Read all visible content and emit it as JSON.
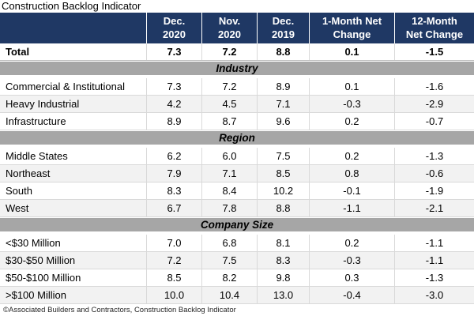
{
  "chart_data": {
    "type": "table",
    "title": "Construction Backlog Indicator",
    "columns": [
      "",
      "Dec.\n2020",
      "Nov.\n2020",
      "Dec.\n2019",
      "1-Month Net\nChange",
      "12-Month\nNet Change"
    ],
    "total_row": {
      "label": "Total",
      "values": [
        "7.3",
        "7.2",
        "8.8",
        "0.1",
        "-1.5"
      ]
    },
    "sections": [
      {
        "header": "Industry",
        "rows": [
          {
            "label": "Commercial & Institutional",
            "values": [
              "7.3",
              "7.2",
              "8.9",
              "0.1",
              "-1.6"
            ]
          },
          {
            "label": "Heavy Industrial",
            "values": [
              "4.2",
              "4.5",
              "7.1",
              "-0.3",
              "-2.9"
            ]
          },
          {
            "label": "Infrastructure",
            "values": [
              "8.9",
              "8.7",
              "9.6",
              "0.2",
              "-0.7"
            ]
          }
        ]
      },
      {
        "header": "Region",
        "rows": [
          {
            "label": "Middle States",
            "values": [
              "6.2",
              "6.0",
              "7.5",
              "0.2",
              "-1.3"
            ]
          },
          {
            "label": "Northeast",
            "values": [
              "7.9",
              "7.1",
              "8.5",
              "0.8",
              "-0.6"
            ]
          },
          {
            "label": "South",
            "values": [
              "8.3",
              "8.4",
              "10.2",
              "-0.1",
              "-1.9"
            ]
          },
          {
            "label": "West",
            "values": [
              "6.7",
              "7.8",
              "8.8",
              "-1.1",
              "-2.1"
            ]
          }
        ]
      },
      {
        "header": "Company Size",
        "rows": [
          {
            "label": "<$30 Million",
            "values": [
              "7.0",
              "6.8",
              "8.1",
              "0.2",
              "-1.1"
            ]
          },
          {
            "label": "$30-$50 Million",
            "values": [
              "7.2",
              "7.5",
              "8.3",
              "-0.3",
              "-1.1"
            ]
          },
          {
            "label": "$50-$100 Million",
            "values": [
              "8.5",
              "8.2",
              "9.8",
              "0.3",
              "-1.3"
            ]
          },
          {
            "label": ">$100 Million",
            "values": [
              "10.0",
              "10.4",
              "13.0",
              "-0.4",
              "-3.0"
            ]
          }
        ]
      }
    ],
    "footnote": "©Associated Builders and Contractors, Construction Backlog Indicator",
    "colors": {
      "header_bg": "#1F3864",
      "header_text": "#FFFFFF",
      "section_band_bg": "#A6A6A6",
      "row_alt_bg": "#F2F2F2",
      "gridline": "#D9D9D9"
    },
    "layout": {
      "units": "months",
      "grid": true,
      "legend": false
    }
  }
}
